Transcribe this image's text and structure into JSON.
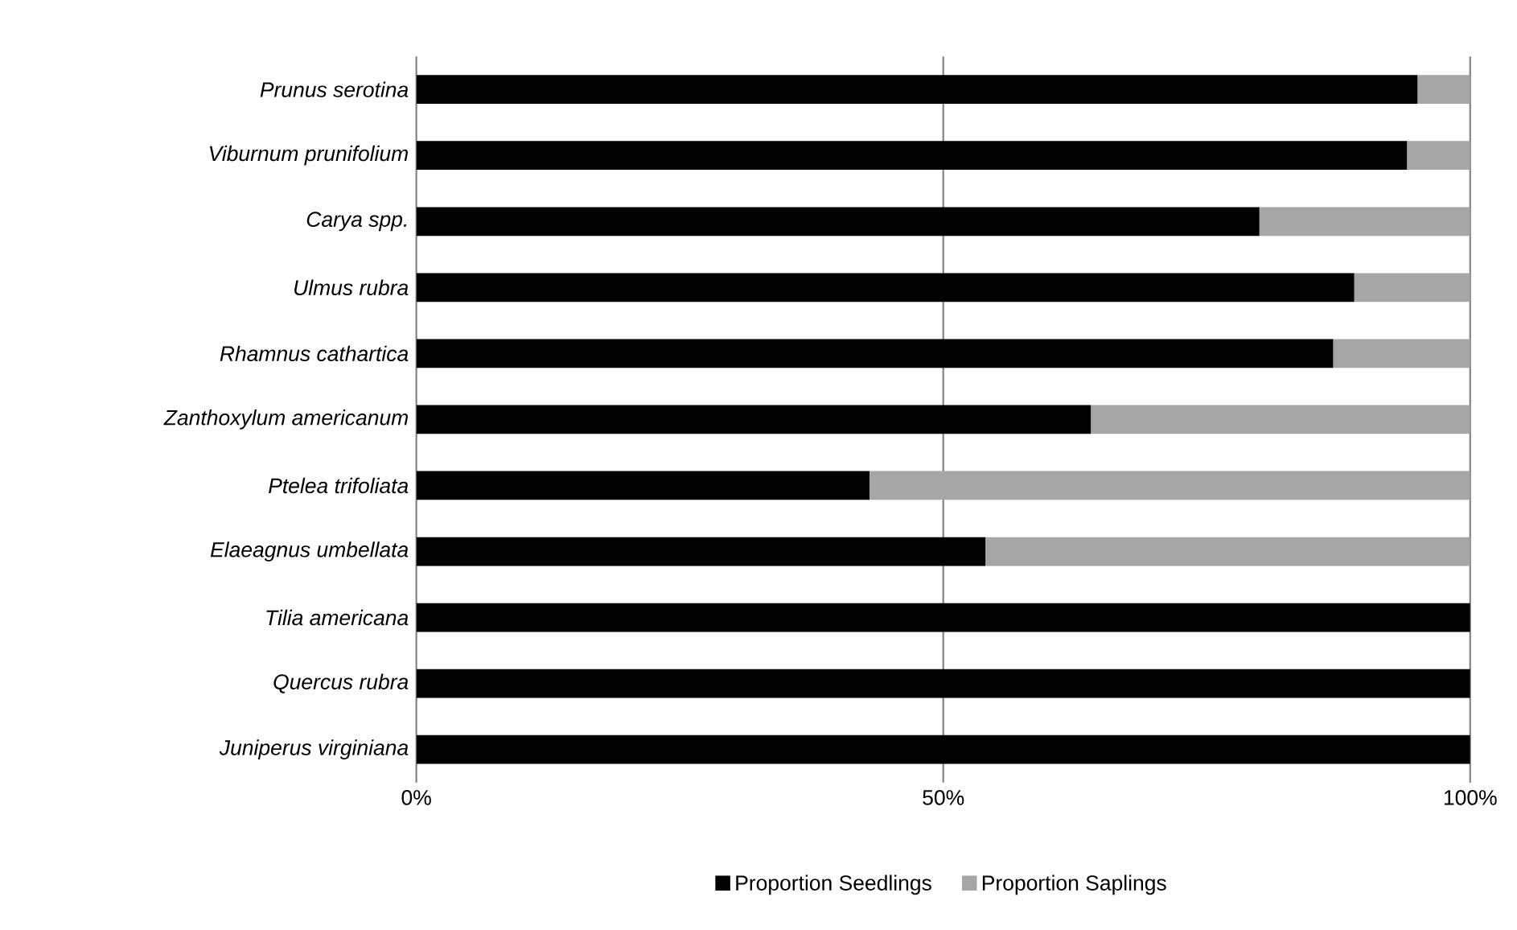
{
  "chart_data": {
    "type": "bar",
    "orientation": "horizontal",
    "stacked": true,
    "categories": [
      "Prunus serotina",
      "Viburnum prunifolium",
      "Carya spp.",
      "Ulmus rubra",
      "Rhamnus cathartica",
      "Zanthoxylum americanum",
      "Ptelea trifoliata",
      "Elaeagnus umbellata",
      "Tilia americana",
      "Quercus rubra",
      "Juniperus virginiana"
    ],
    "series": [
      {
        "name": "Proportion Seedlings",
        "color": "#000000",
        "values": [
          95,
          94,
          80,
          89,
          87,
          64,
          43,
          54,
          100,
          100,
          100
        ]
      },
      {
        "name": "Proportion Saplings",
        "color": "#a6a6a6",
        "values": [
          5,
          6,
          20,
          11,
          13,
          36,
          57,
          46,
          0,
          0,
          0
        ]
      }
    ],
    "xlim": [
      0,
      100
    ],
    "xticks": [
      {
        "value": 0,
        "label": "0%"
      },
      {
        "value": 50,
        "label": "50%"
      },
      {
        "value": 100,
        "label": "100%"
      }
    ],
    "grid": "x",
    "legend": "bottom"
  }
}
